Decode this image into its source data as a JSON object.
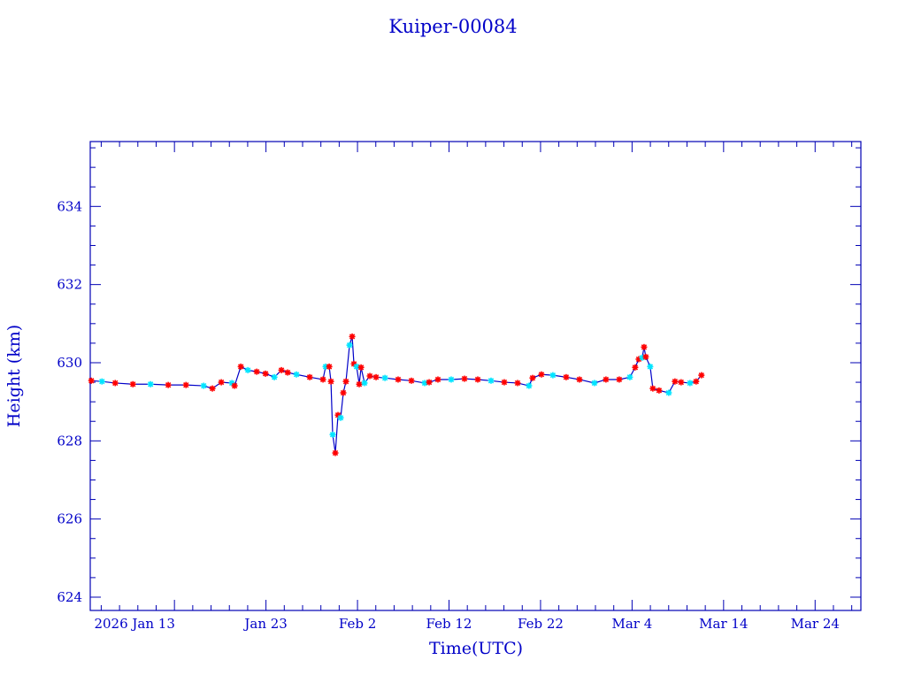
{
  "chart_data": {
    "type": "scatter",
    "title": "Kuiper-00084",
    "xlabel": "Time(UTC)",
    "ylabel": "Height (km)",
    "x_unit": "day of 2026 (0 = Jan 1)",
    "xlim": [
      2.8,
      87.0
    ],
    "ylim": [
      623.66,
      635.66
    ],
    "x_ticks": [
      {
        "value": 12,
        "label": "2026 Jan 13"
      },
      {
        "value": 22,
        "label": "Jan 23"
      },
      {
        "value": 32,
        "label": "Feb  2"
      },
      {
        "value": 42,
        "label": "Feb 12"
      },
      {
        "value": 52,
        "label": "Feb 22"
      },
      {
        "value": 62,
        "label": "Mar  4"
      },
      {
        "value": 72,
        "label": "Mar 14"
      },
      {
        "value": 82,
        "label": "Mar 24"
      }
    ],
    "y_ticks": [
      {
        "value": 624,
        "label": "624"
      },
      {
        "value": 626,
        "label": "626"
      },
      {
        "value": 628,
        "label": "628"
      },
      {
        "value": 630,
        "label": "630"
      },
      {
        "value": 632,
        "label": "632"
      },
      {
        "value": 634,
        "label": "634"
      }
    ],
    "colors": {
      "axis": "#0000b4",
      "line": "#0000c8",
      "marker_primary": "#ff0000",
      "marker_secondary": "#00e5ff"
    },
    "series": [
      {
        "name": "height",
        "x": [
          2.92,
          4.08,
          5.53,
          7.46,
          9.39,
          11.32,
          13.26,
          15.19,
          16.15,
          17.12,
          18.28,
          18.57,
          19.25,
          20.02,
          20.99,
          21.95,
          22.92,
          23.69,
          24.37,
          25.33,
          26.78,
          28.23,
          28.52,
          28.91,
          29.1,
          29.29,
          29.58,
          29.87,
          30.16,
          30.45,
          30.74,
          31.13,
          31.42,
          31.61,
          31.9,
          32.19,
          32.39,
          32.77,
          33.35,
          34.03,
          35.0,
          36.44,
          37.89,
          39.34,
          39.83,
          40.79,
          42.24,
          43.69,
          45.14,
          46.59,
          48.04,
          49.49,
          50.74,
          51.13,
          52.1,
          53.35,
          54.8,
          56.25,
          57.89,
          59.15,
          60.6,
          61.76,
          62.34,
          62.73,
          63.11,
          63.31,
          63.5,
          63.98,
          64.27,
          64.95,
          66.01,
          66.69,
          67.36,
          68.33,
          69.0,
          69.58
        ],
        "y": [
          629.54,
          629.52,
          629.48,
          629.45,
          629.45,
          629.43,
          629.43,
          629.41,
          629.34,
          629.5,
          629.48,
          629.41,
          629.9,
          629.81,
          629.77,
          629.72,
          629.63,
          629.81,
          629.75,
          629.7,
          629.63,
          629.57,
          629.9,
          629.9,
          629.52,
          628.16,
          627.69,
          628.66,
          628.59,
          629.23,
          629.52,
          630.45,
          630.67,
          629.97,
          629.9,
          629.45,
          629.88,
          629.48,
          629.66,
          629.63,
          629.61,
          629.57,
          629.54,
          629.48,
          629.5,
          629.57,
          629.57,
          629.59,
          629.57,
          629.54,
          629.5,
          629.48,
          629.41,
          629.61,
          629.7,
          629.68,
          629.63,
          629.57,
          629.48,
          629.57,
          629.57,
          629.63,
          629.88,
          630.09,
          630.13,
          630.4,
          630.15,
          629.9,
          629.34,
          629.29,
          629.23,
          629.52,
          629.5,
          629.48,
          629.52,
          629.68
        ]
      }
    ]
  }
}
